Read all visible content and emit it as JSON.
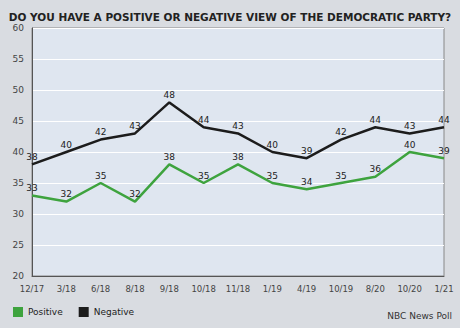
{
  "chart_data": {
    "type": "line",
    "title": "DO YOU HAVE A POSITIVE OR NEGATIVE VIEW OF THE DEMOCRATIC PARTY?",
    "categories": [
      "12/17",
      "3/18",
      "6/18",
      "8/18",
      "9/18",
      "10/18",
      "11/18",
      "1/19",
      "4/19",
      "10/19",
      "8/20",
      "10/20",
      "1/21"
    ],
    "series": [
      {
        "name": "Positive",
        "color": "#3ea33e",
        "values": [
          33,
          32,
          35,
          32,
          38,
          35,
          38,
          35,
          34,
          35,
          36,
          40,
          39
        ]
      },
      {
        "name": "Negative",
        "color": "#1c1c1c",
        "values": [
          38,
          40,
          42,
          43,
          48,
          44,
          43,
          40,
          39,
          42,
          44,
          43,
          44
        ]
      }
    ],
    "ylim": [
      20,
      60
    ],
    "yticks": [
      20,
      25,
      30,
      35,
      40,
      45,
      50,
      55,
      60
    ],
    "grid": true,
    "data_labels": true,
    "legend": "bottom-left",
    "annotations": [
      "NBC News Poll"
    ]
  }
}
